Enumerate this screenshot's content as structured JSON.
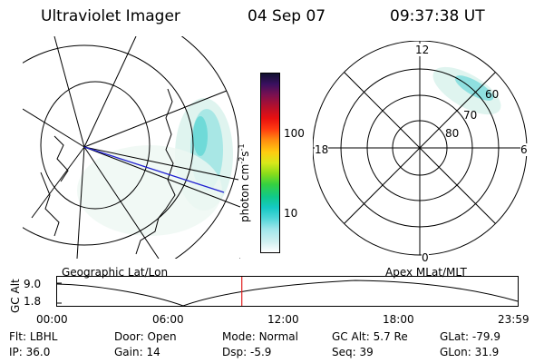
{
  "header": {
    "instrument": "Ultraviolet Imager",
    "date": "04 Sep 07",
    "time": "09:37:38 UT"
  },
  "colorbar": {
    "unit_label": "photon cm",
    "unit_sup1": "-2",
    "unit_s": "s",
    "unit_sup2": "-1",
    "ticks": [
      "100",
      "10"
    ],
    "colors": [
      "#ffffff",
      "#cfeff0",
      "#9fe6ea",
      "#4fd6d8",
      "#15c9c4",
      "#10c98a",
      "#35d040",
      "#8bdc1a",
      "#d8e81a",
      "#ffcc10",
      "#ff8a10",
      "#ff3a10",
      "#e81010",
      "#b8102a",
      "#7a1050",
      "#3a1060",
      "#101030"
    ]
  },
  "geo_map": {
    "label": "Geographic Lat/Lon"
  },
  "polar_map": {
    "label": "Apex MLat/MLT",
    "mlt_labels": {
      "top": "12",
      "left": "18",
      "right": "6",
      "bottom": "0"
    },
    "lat_labels": [
      "60",
      "70",
      "80"
    ]
  },
  "orbit_plot": {
    "ylabel": "GC Alt",
    "yticks": [
      "9.0",
      "1.8"
    ],
    "xticks": [
      "00:00",
      "06:00",
      "12:00",
      "18:00",
      "23:59"
    ],
    "current_time_fraction": 0.401
  },
  "footer": {
    "row1": [
      {
        "label": "Flt:",
        "value": "LBHL"
      },
      {
        "label": "Door:",
        "value": "Open"
      },
      {
        "label": "Mode:",
        "value": "Normal"
      },
      {
        "label": "GC Alt:",
        "value": "5.7 Re"
      },
      {
        "label": "GLat:",
        "value": "-79.9"
      }
    ],
    "row2": [
      {
        "label": "IP:",
        "value": "36.0"
      },
      {
        "label": "Gain:",
        "value": "14"
      },
      {
        "label": "Dsp:",
        "value": "-5.9"
      },
      {
        "label": "Seq:",
        "value": "39"
      },
      {
        "label": "GLon:",
        "value": "31.9"
      }
    ]
  }
}
